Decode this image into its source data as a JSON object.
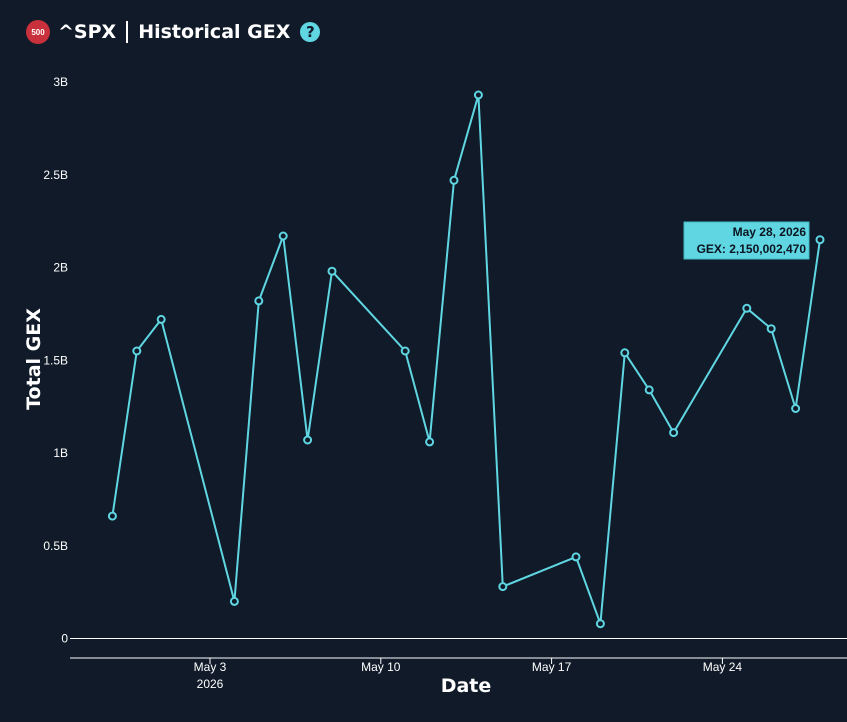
{
  "header": {
    "badge": "500",
    "ticker": "^SPX",
    "title": "Historical GEX",
    "help_icon": "question-circle-icon"
  },
  "colors": {
    "background": "#101a28",
    "line": "#5fd6e2",
    "badge": "#c8313c"
  },
  "chart_data": {
    "type": "line",
    "xlabel": "Date",
    "ylabel": "Total GEX",
    "ylim": [
      0,
      3000000000
    ],
    "grid": false,
    "y_ticks": [
      {
        "value": 0,
        "label": "0"
      },
      {
        "value": 500000000,
        "label": "0.5B"
      },
      {
        "value": 1000000000,
        "label": "1B"
      },
      {
        "value": 1500000000,
        "label": "1.5B"
      },
      {
        "value": 2000000000,
        "label": "2B"
      },
      {
        "value": 2500000000,
        "label": "2.5B"
      },
      {
        "value": 3000000000,
        "label": "3B"
      }
    ],
    "x_ticks": [
      {
        "date": "2026-05-03",
        "label": "May 3",
        "sublabel": "2026"
      },
      {
        "date": "2026-05-10",
        "label": "May 10",
        "sublabel": ""
      },
      {
        "date": "2026-05-17",
        "label": "May 17",
        "sublabel": ""
      },
      {
        "date": "2026-05-24",
        "label": "May 24",
        "sublabel": ""
      }
    ],
    "series": [
      {
        "points": [
          {
            "x": "2026-04-29",
            "y": 660000000
          },
          {
            "x": "2026-04-30",
            "y": 1550000000
          },
          {
            "x": "2026-05-01",
            "y": 1720000000
          },
          {
            "x": "2026-05-04",
            "y": 200000000
          },
          {
            "x": "2026-05-05",
            "y": 1820000000
          },
          {
            "x": "2026-05-06",
            "y": 2170000000
          },
          {
            "x": "2026-05-07",
            "y": 1070000000
          },
          {
            "x": "2026-05-08",
            "y": 1980000000
          },
          {
            "x": "2026-05-11",
            "y": 1550000000
          },
          {
            "x": "2026-05-12",
            "y": 1060000000
          },
          {
            "x": "2026-05-13",
            "y": 2470000000
          },
          {
            "x": "2026-05-14",
            "y": 2930000000
          },
          {
            "x": "2026-05-15",
            "y": 280000000
          },
          {
            "x": "2026-05-18",
            "y": 440000000
          },
          {
            "x": "2026-05-19",
            "y": 80000000
          },
          {
            "x": "2026-05-20",
            "y": 1540000000
          },
          {
            "x": "2026-05-21",
            "y": 1340000000
          },
          {
            "x": "2026-05-22",
            "y": 1110000000
          },
          {
            "x": "2026-05-25",
            "y": 1780000000
          },
          {
            "x": "2026-05-26",
            "y": 1670000000
          },
          {
            "x": "2026-05-27",
            "y": 1240000000
          },
          {
            "x": "2026-05-28",
            "y": 2150002470
          }
        ]
      }
    ],
    "tooltip": {
      "date": "May 28, 2026",
      "text": "GEX: 2,150,002,470"
    }
  }
}
